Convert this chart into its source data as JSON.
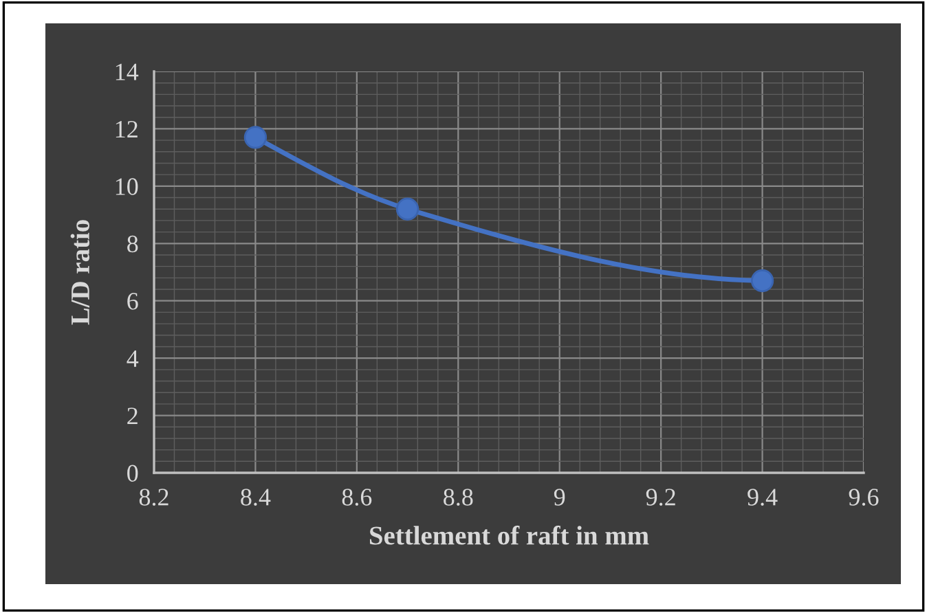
{
  "chart_data": {
    "type": "line",
    "xlabel": "Settlement of raft in mm",
    "ylabel": "L/D ratio",
    "x": [
      8.4,
      8.7,
      9.4
    ],
    "series": [
      {
        "color": "#4472c4",
        "values": [
          11.7,
          9.2,
          6.7
        ]
      }
    ],
    "xlim": [
      8.2,
      9.6
    ],
    "xticks": [
      8.2,
      8.4,
      8.6,
      8.8,
      9,
      9.2,
      9.4,
      9.6
    ],
    "ylim": [
      0,
      14
    ],
    "yticks": [
      0,
      2,
      4,
      6,
      8,
      10,
      12,
      14
    ],
    "grid": true,
    "marker": "circle",
    "line_style": "solid"
  }
}
